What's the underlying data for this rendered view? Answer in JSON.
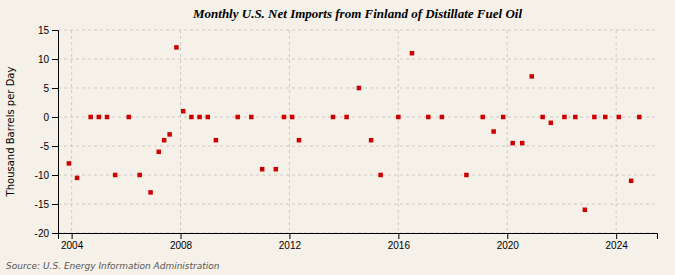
{
  "chart_data": {
    "type": "scatter",
    "title": "Monthly U.S. Net Imports from Finland of Distillate Fuel Oil",
    "y_label": "Thousand Barrels per Day",
    "source": "Source: U.S. Energy Information Administration",
    "x": [
      2003.9,
      2004.2,
      2004.7,
      2005.0,
      2005.3,
      2005.6,
      2006.1,
      2006.5,
      2006.9,
      2007.2,
      2007.4,
      2007.6,
      2007.85,
      2008.1,
      2008.4,
      2008.7,
      2009.0,
      2009.3,
      2010.1,
      2010.6,
      2011.0,
      2011.5,
      2011.8,
      2012.1,
      2012.35,
      2013.6,
      2014.1,
      2014.55,
      2015.0,
      2015.35,
      2016.0,
      2016.5,
      2017.1,
      2017.6,
      2018.5,
      2019.1,
      2019.5,
      2019.85,
      2020.2,
      2020.55,
      2020.9,
      2021.3,
      2021.6,
      2022.1,
      2022.5,
      2022.85,
      2023.2,
      2023.6,
      2024.1,
      2024.55,
      2024.85
    ],
    "values": [
      -8,
      -10.5,
      0,
      0,
      0,
      -10,
      0,
      -10,
      -13,
      -6,
      -4,
      -3,
      12,
      1,
      0,
      0,
      0,
      -4,
      0,
      0,
      -9,
      -9,
      0,
      0,
      -4,
      0,
      0,
      5,
      -4,
      -10,
      0,
      11,
      0,
      0,
      -10,
      0,
      -2.5,
      0,
      -4.5,
      -4.5,
      7,
      0,
      -1,
      0,
      0,
      -16,
      0,
      0,
      0,
      -11,
      0
    ],
    "color": "#cc0000",
    "marker": "square",
    "xlim": [
      2003.5,
      2025.5
    ],
    "xticks": [
      2004,
      2008,
      2012,
      2016,
      2020,
      2024
    ],
    "ylim": [
      -20,
      15
    ],
    "yticks": [
      -20,
      -15,
      -10,
      -5,
      0,
      5,
      10,
      15
    ],
    "grid": true
  }
}
